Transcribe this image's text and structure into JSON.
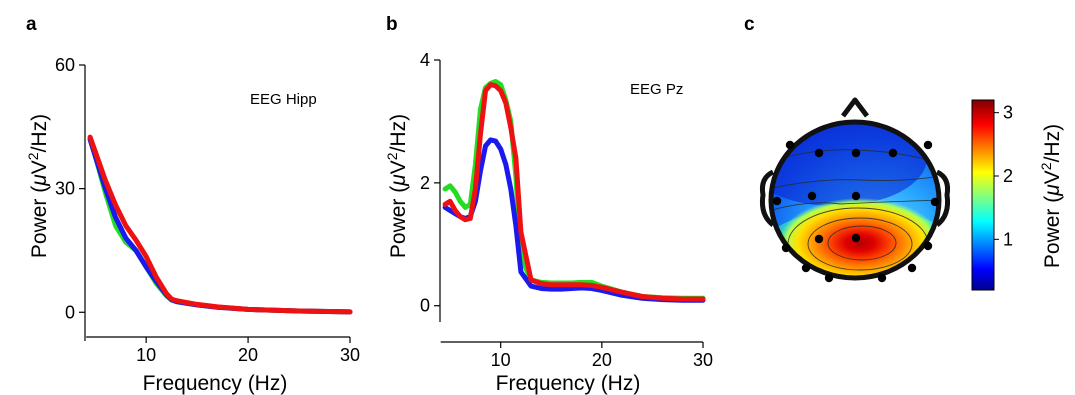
{
  "figure": {
    "panel_letters": [
      "a",
      "b",
      "c"
    ]
  },
  "chart_data": [
    {
      "type": "line",
      "panel": "a",
      "xlabel": "Frequency (Hz)",
      "ylabel_prefix": "Power (",
      "ylabel_mu": "μ",
      "ylabel_unit": "V",
      "ylabel_sup": "2",
      "ylabel_suffix": "/Hz)",
      "annotation": "EEG Hipp",
      "xlim": [
        4,
        30
      ],
      "ylim": [
        -6,
        60
      ],
      "xticks": [
        10,
        20,
        30
      ],
      "yticks": [
        0,
        30,
        60
      ],
      "grid": false,
      "legend": "none",
      "series": [
        {
          "color": "#22dd22",
          "x": [
            4.5,
            5,
            6,
            7,
            8,
            9,
            10,
            11,
            12,
            12.5,
            13,
            15,
            17,
            20,
            25,
            30
          ],
          "y": [
            42,
            38,
            29,
            21,
            17,
            15,
            11,
            7,
            4,
            3,
            2.6,
            1.8,
            1.2,
            0.7,
            0.3,
            0.1
          ]
        },
        {
          "color": "#1a1aee",
          "x": [
            4.5,
            5,
            6,
            7,
            8,
            9,
            10,
            11,
            12,
            12.5,
            13,
            15,
            17,
            20,
            25,
            30
          ],
          "y": [
            42,
            38,
            30,
            23,
            18,
            15,
            11,
            7.5,
            4.2,
            3,
            2.6,
            1.8,
            1.2,
            0.7,
            0.3,
            0.1
          ]
        },
        {
          "color": "#ee1111",
          "x": [
            4.5,
            5,
            6,
            7,
            8,
            9,
            10,
            11,
            12,
            12.5,
            13,
            15,
            17,
            20,
            25,
            30
          ],
          "y": [
            42.5,
            39,
            32,
            26,
            21,
            17.5,
            13.5,
            8.5,
            4.5,
            3.2,
            2.8,
            1.9,
            1.3,
            0.7,
            0.3,
            0.1
          ]
        }
      ]
    },
    {
      "type": "line",
      "panel": "b",
      "xlabel": "Frequency (Hz)",
      "ylabel_prefix": "Power (",
      "ylabel_mu": "μ",
      "ylabel_unit": "V",
      "ylabel_sup": "2",
      "ylabel_suffix": "/Hz)",
      "annotation": "EEG Pz",
      "xlim": [
        4,
        30
      ],
      "ylim": [
        -0.2,
        4
      ],
      "xticks": [
        10,
        20,
        30
      ],
      "yticks": [
        0,
        2,
        4
      ],
      "grid": false,
      "legend": "none",
      "series": [
        {
          "color": "#22dd22",
          "x": [
            4.5,
            5,
            5.5,
            6,
            6.5,
            7,
            7.5,
            8,
            8.5,
            9,
            9.5,
            10,
            10.5,
            11,
            11.5,
            12,
            13,
            14,
            15,
            16,
            17,
            18,
            19,
            20,
            22,
            24,
            26,
            28,
            30
          ],
          "y": [
            1.9,
            1.95,
            1.85,
            1.7,
            1.6,
            1.65,
            2.3,
            3.2,
            3.55,
            3.62,
            3.65,
            3.6,
            3.35,
            3,
            2.1,
            0.8,
            0.42,
            0.38,
            0.37,
            0.37,
            0.37,
            0.38,
            0.38,
            0.32,
            0.22,
            0.15,
            0.13,
            0.12,
            0.12
          ]
        },
        {
          "color": "#1a1aee",
          "x": [
            4.5,
            5,
            5.5,
            6,
            6.5,
            7,
            7.5,
            8,
            8.5,
            9,
            9.5,
            10,
            10.5,
            11,
            11.5,
            12,
            13,
            14,
            15,
            16,
            17,
            18,
            19,
            20,
            22,
            24,
            26,
            28,
            30
          ],
          "y": [
            1.6,
            1.55,
            1.5,
            1.45,
            1.42,
            1.45,
            1.7,
            2.2,
            2.6,
            2.7,
            2.68,
            2.55,
            2.3,
            1.9,
            1.3,
            0.55,
            0.32,
            0.28,
            0.27,
            0.27,
            0.28,
            0.29,
            0.28,
            0.25,
            0.17,
            0.12,
            0.1,
            0.09,
            0.09
          ]
        },
        {
          "color": "#ee1111",
          "x": [
            4.5,
            5,
            5.5,
            6,
            6.5,
            7,
            7.5,
            8,
            8.5,
            9,
            9.5,
            10,
            10.5,
            11,
            11.5,
            12,
            13,
            14,
            15,
            16,
            17,
            18,
            19,
            20,
            22,
            24,
            26,
            28,
            30
          ],
          "y": [
            1.65,
            1.7,
            1.55,
            1.45,
            1.4,
            1.42,
            1.9,
            2.8,
            3.5,
            3.6,
            3.58,
            3.5,
            3.3,
            2.9,
            2.4,
            1.2,
            0.42,
            0.36,
            0.34,
            0.34,
            0.34,
            0.34,
            0.33,
            0.3,
            0.22,
            0.15,
            0.12,
            0.11,
            0.11
          ]
        }
      ]
    },
    {
      "type": "heatmap",
      "panel": "c",
      "colorbar_label_prefix": "Power (",
      "colorbar_label_mu": "μ",
      "colorbar_label_unit": "V",
      "colorbar_label_sup": "2",
      "colorbar_label_suffix": "/Hz)",
      "colorbar_range": [
        0.2,
        3.2
      ],
      "colorbar_ticks": [
        1,
        2,
        3
      ],
      "colormap": "jet",
      "peak_value": 3.1,
      "peak_location": "posterior-right of center",
      "electrodes": 17
    }
  ]
}
